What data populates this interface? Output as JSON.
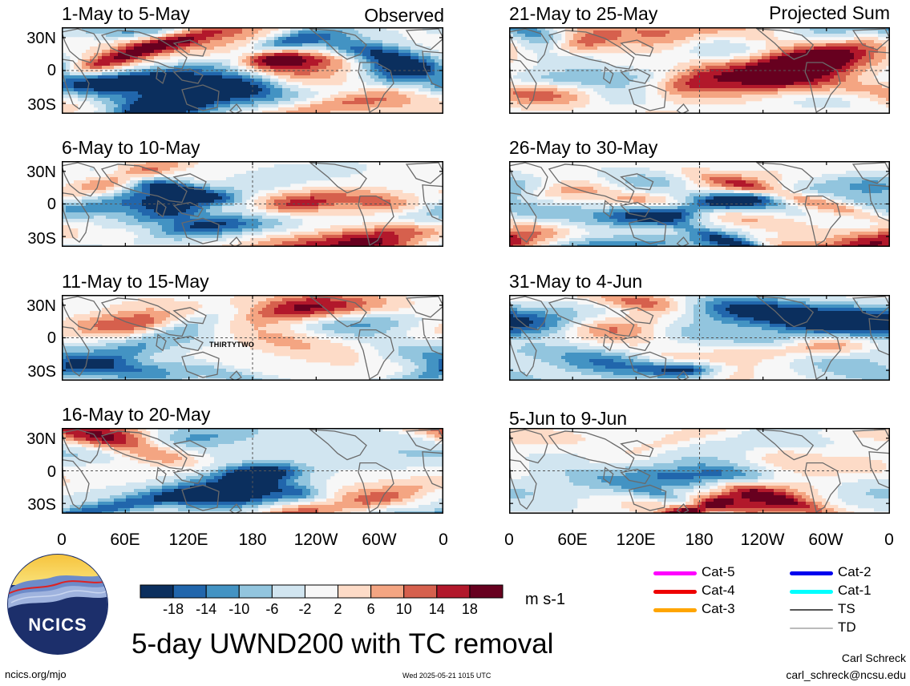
{
  "panels": [
    {
      "id": "p1",
      "title": "1-May to 5-May",
      "col": 0,
      "row": 0,
      "storm_label": ""
    },
    {
      "id": "p2",
      "title": "6-May to 10-May",
      "col": 0,
      "row": 1,
      "storm_label": ""
    },
    {
      "id": "p3",
      "title": "11-May to 15-May",
      "col": 0,
      "row": 2,
      "storm_label": "THIRTYTWO"
    },
    {
      "id": "p4",
      "title": "16-May to 20-May",
      "col": 0,
      "row": 3,
      "storm_label": ""
    },
    {
      "id": "p5",
      "title": "21-May to 25-May",
      "col": 1,
      "row": 0,
      "storm_label": ""
    },
    {
      "id": "p6",
      "title": "26-May to 30-May",
      "col": 1,
      "row": 1,
      "storm_label": ""
    },
    {
      "id": "p7",
      "title": "31-May to 4-Jun",
      "col": 1,
      "row": 2,
      "storm_label": ""
    },
    {
      "id": "p8",
      "title": "5-Jun to 9-Jun",
      "col": 1,
      "row": 3,
      "storm_label": ""
    }
  ],
  "column_labels": {
    "left": "Observed",
    "right": "Projected Sum"
  },
  "lat_labels": [
    "30N",
    "0",
    "30S"
  ],
  "lon_labels": [
    "0",
    "60E",
    "120E",
    "180",
    "120W",
    "60W",
    "0"
  ],
  "colorbar": {
    "ticks": [
      "-18",
      "-14",
      "-10",
      "-6",
      "-2",
      "2",
      "6",
      "10",
      "14",
      "18"
    ],
    "colors": [
      "#0b2f5e",
      "#2166ac",
      "#4393c3",
      "#92c5de",
      "#d1e5f0",
      "#f7f7f7",
      "#fddbc7",
      "#f4a582",
      "#d6604d",
      "#b2182b",
      "#67001f"
    ],
    "units": "m s-1"
  },
  "legend": [
    {
      "label": "Cat-5",
      "color": "#ff00ff"
    },
    {
      "label": "Cat-4",
      "color": "#ee0000"
    },
    {
      "label": "Cat-3",
      "color": "#ffa500"
    },
    {
      "label": "Cat-2",
      "color": "#0000ee"
    },
    {
      "label": "Cat-1",
      "color": "#00ffff"
    },
    {
      "label": "TS",
      "color": "#555555"
    },
    {
      "label": "TD",
      "color": "#bbbbbb"
    }
  ],
  "logo_text": "NCICS",
  "main_title": "5-day UWND200 with TC removal",
  "author": "Carl Schreck",
  "email": "carl_schreck@ncsu.edu",
  "website": "ncics.org/mjo",
  "timestamp": "Wed 2025-05-21 1015 UTC"
}
